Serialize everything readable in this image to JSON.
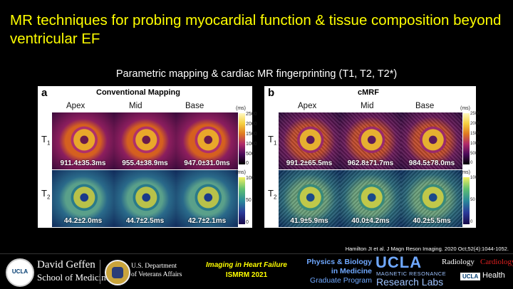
{
  "title": "MR techniques for probing myocardial function & tissue composition beyond ventricular EF",
  "subtitle": "Parametric mapping & cardiac MR fingerprinting (T1, T2, T2*)",
  "panels": {
    "left": {
      "label": "a",
      "title": "Conventional Mapping",
      "columns": [
        "Apex",
        "Mid",
        "Base"
      ],
      "rows": [
        "T",
        "T"
      ],
      "row_subs": [
        "1",
        "2"
      ],
      "t1_values": [
        "911.4±35.3ms",
        "955.4±38.9ms",
        "947.0±31.0ms"
      ],
      "t2_values": [
        "44.2±2.0ms",
        "44.7±2.5ms",
        "42.7±2.1ms"
      ]
    },
    "right": {
      "label": "b",
      "title": "cMRF",
      "columns": [
        "Apex",
        "Mid",
        "Base"
      ],
      "rows": [
        "T",
        "T"
      ],
      "row_subs": [
        "1",
        "2"
      ],
      "t1_values": [
        "991.2±65.5ms",
        "962.8±71.7ms",
        "984.5±78.0ms"
      ],
      "t2_values": [
        "41.9±5.9ms",
        "40.0±4.2ms",
        "40.2±5.5ms"
      ]
    },
    "t1_scale": {
      "unit": "(ms)",
      "ticks": [
        "2500",
        "2000",
        "1500",
        "1000",
        "500",
        "0"
      ]
    },
    "t2_scale": {
      "unit": "(ms)",
      "ticks": [
        "100",
        "50",
        "0"
      ]
    }
  },
  "citation": "Hamilton JI et al. J Magn Reson Imaging. 2020 Oct;52(4):1044-1052.",
  "footer": {
    "ucla_seal": "UCLA",
    "school_line1": "David Geffen",
    "school_line2": "School of Medicine",
    "va_line1": "U.S. Department",
    "va_line2": "of Veterans Affairs",
    "event_line1": "Imaging in Heart Failure",
    "event_line2": "ISMRM 2021",
    "physics_line1": "Physics & Biology",
    "physics_line2": "in Medicine",
    "physics_line3": "Graduate Program",
    "ucla_big": "UCLA",
    "mr_line1": "MAGNETIC RESONANCE",
    "mr_line2": "Research Labs",
    "radiology": "Radiology",
    "cardiology": "Cardiology",
    "health_ucla": "UCLA",
    "health": "Health"
  },
  "colors": {
    "title": "#ffff00",
    "event": "#ffff00",
    "physics": "#6fa8ff",
    "mr_labs": "#9ec3ff",
    "cardiology": "#e02020"
  }
}
